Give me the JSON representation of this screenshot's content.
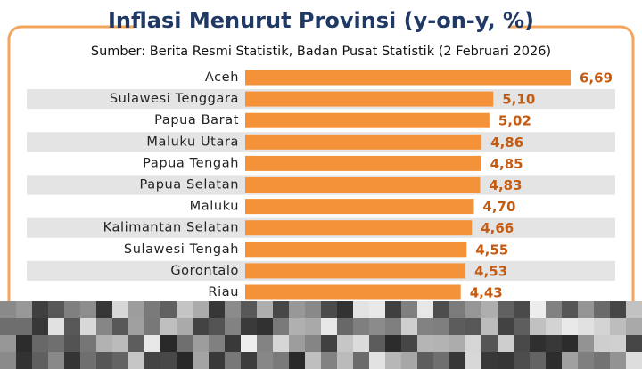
{
  "chart_data": {
    "type": "bar",
    "orientation": "horizontal",
    "title": "Inflasi Menurut Provinsi (y-on-y, %)",
    "subtitle": "Sumber: Berita Resmi Statistik, Badan Pusat Statistik (2 Februari 2026)",
    "categories": [
      "Aceh",
      "Sulawesi Tenggara",
      "Papua Barat",
      "Maluku Utara",
      "Papua Tengah",
      "Papua Selatan",
      "Maluku",
      "Kalimantan Selatan",
      "Sulawesi Tengah",
      "Gorontalo",
      "Riau"
    ],
    "values": [
      6.69,
      5.1,
      5.02,
      4.86,
      4.85,
      4.83,
      4.7,
      4.66,
      4.55,
      4.53,
      4.43
    ],
    "value_labels": [
      "6,69",
      "5,10",
      "5,02",
      "4,86",
      "4,85",
      "4,83",
      "4,70",
      "4,66",
      "4,55",
      "4,53",
      "4,43"
    ],
    "color": "#f4923a"
  }
}
